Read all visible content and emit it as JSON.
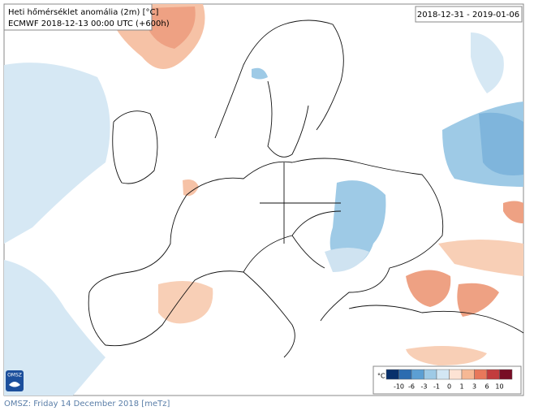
{
  "header": {
    "title": "Heti hőmérséklet anomália (2m) [°C]",
    "subtitle": "ECMWF 2018-12-13 00:00 UTC (+600h)",
    "period": "2018-12-31 - 2019-01-06"
  },
  "logo": "OMSZ",
  "legend": {
    "unit": "°C",
    "labels": [
      -10,
      -6,
      -3,
      -1,
      0,
      1,
      3,
      6,
      10
    ],
    "colors": [
      "#08306b",
      "#2b6cb0",
      "#5c9fd3",
      "#9ecae6",
      "#d3e7f4",
      "#fde3d4",
      "#f6b894",
      "#e8785b",
      "#c23b3d",
      "#780c25"
    ]
  },
  "footer": "OMSZ: Friday 14 December 2018  [meTz]"
}
